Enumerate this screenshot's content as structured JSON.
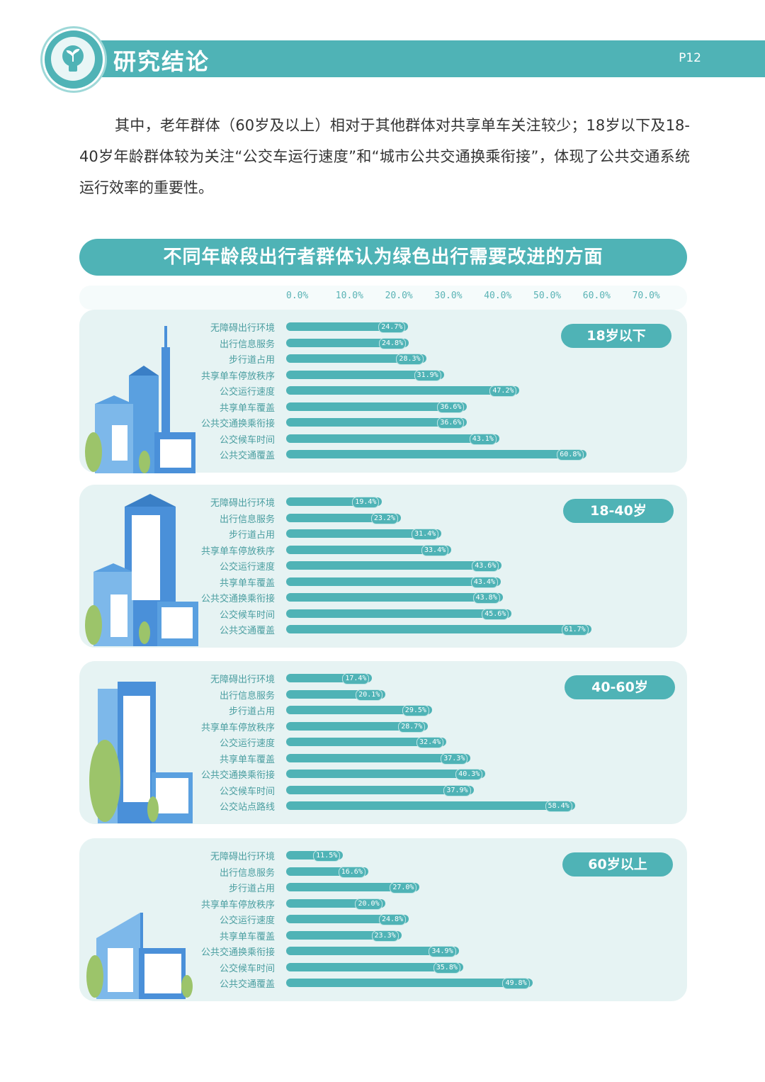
{
  "header": {
    "title": "研究结论",
    "page": "P12"
  },
  "intro": "其中，老年群体（60岁及以上）相对于其他群体对共享单车关注较少；18岁以下及18-40岁年龄群体较为关注“公交车运行速度”和“城市公共交通换乘衔接”，体现了公共交通系统运行效率的重要性。",
  "chart_data": [
    {
      "type": "bar",
      "title": "不同年龄段出行者群体认为绿色出行需要改进的方面",
      "group": "18岁以下",
      "x_ticks": [
        "0.0%",
        "10.0%",
        "20.0%",
        "30.0%",
        "40.0%",
        "50.0%",
        "60.0%",
        "70.0%"
      ],
      "xlim": [
        0,
        70
      ],
      "categories": [
        "无障碍出行环境",
        "出行信息服务",
        "步行道占用",
        "共享单车停放秩序",
        "公交运行速度",
        "共享单车覆盖",
        "公共交通换乘衔接",
        "公交候车时间",
        "公共交通覆盖"
      ],
      "values": [
        24.7,
        24.8,
        28.3,
        31.9,
        47.2,
        36.6,
        36.6,
        43.1,
        60.8
      ],
      "value_labels": [
        "24.7%",
        "24.8%",
        "28.3%",
        "31.9%",
        "47.2%",
        "36.6%",
        "36.6%",
        "43.1%",
        "60.8%"
      ]
    },
    {
      "type": "bar",
      "group": "18-40岁",
      "xlim": [
        0,
        70
      ],
      "categories": [
        "无障碍出行环境",
        "出行信息服务",
        "步行道占用",
        "共享单车停放秩序",
        "公交运行速度",
        "共享单车覆盖",
        "公共交通换乘衔接",
        "公交候车时间",
        "公共交通覆盖"
      ],
      "values": [
        19.4,
        23.2,
        31.4,
        33.4,
        43.6,
        43.4,
        43.8,
        45.6,
        61.7
      ],
      "value_labels": [
        "19.4%",
        "23.2%",
        "31.4%",
        "33.4%",
        "43.6%",
        "43.4%",
        "43.8%",
        "45.6%",
        "61.7%"
      ]
    },
    {
      "type": "bar",
      "group": "40-60岁",
      "xlim": [
        0,
        70
      ],
      "categories": [
        "无障碍出行环境",
        "出行信息服务",
        "步行道占用",
        "共享单车停放秩序",
        "公交运行速度",
        "共享单车覆盖",
        "公共交通换乘衔接",
        "公交候车时间",
        "公交站点路线"
      ],
      "values": [
        17.4,
        20.1,
        29.5,
        28.7,
        32.4,
        37.3,
        40.3,
        37.9,
        58.4
      ],
      "value_labels": [
        "17.4%",
        "20.1%",
        "29.5%",
        "28.7%",
        "32.4%",
        "37.3%",
        "40.3%",
        "37.9%",
        "58.4%"
      ]
    },
    {
      "type": "bar",
      "group": "60岁以上",
      "xlim": [
        0,
        70
      ],
      "categories": [
        "无障碍出行环境",
        "出行信息服务",
        "步行道占用",
        "共享单车停放秩序",
        "公交运行速度",
        "共享单车覆盖",
        "公共交通换乘衔接",
        "公交候车时间",
        "公共交通覆盖"
      ],
      "values": [
        11.5,
        16.6,
        27.0,
        20.0,
        24.8,
        23.3,
        34.9,
        35.8,
        49.8
      ],
      "value_labels": [
        "11.5%",
        "16.6%",
        "27.0%",
        "20.0%",
        "24.8%",
        "23.3%",
        "34.9%",
        "35.8%",
        "49.8%"
      ]
    }
  ],
  "colors": {
    "accent": "#4fb3b6",
    "panel": "#e6f3f3",
    "building": "#4a90d9",
    "tree": "#9cc46a"
  }
}
